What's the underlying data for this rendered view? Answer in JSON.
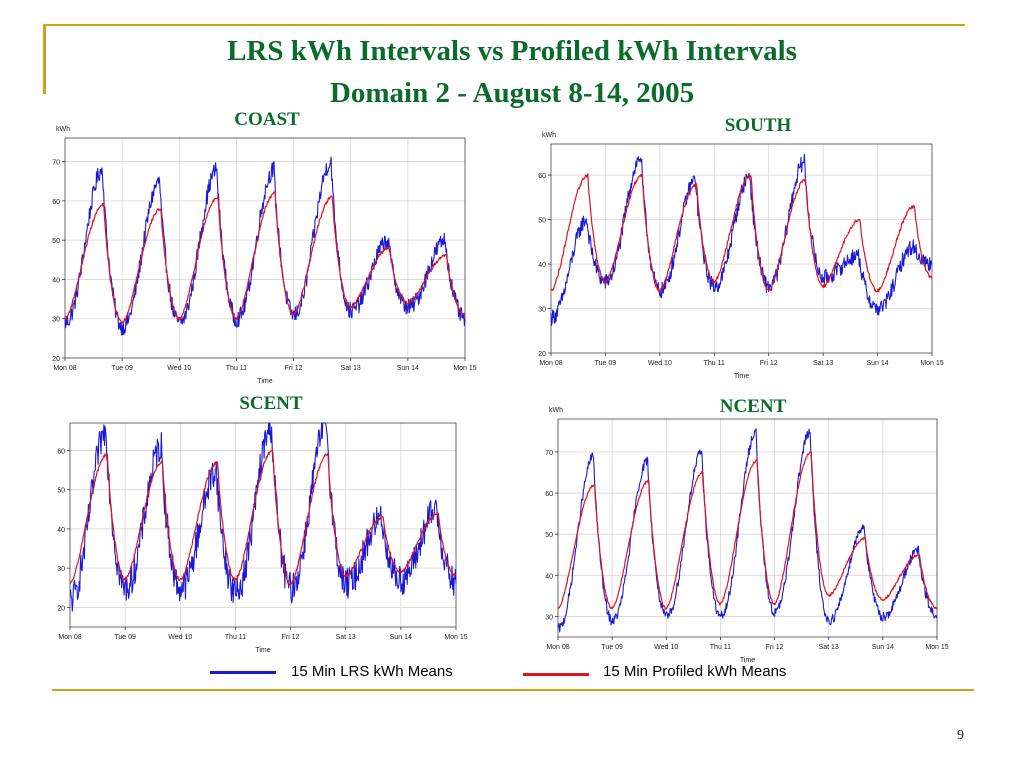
{
  "slide": {
    "title_line1": "LRS kWh Intervals vs Profiled kWh Intervals",
    "title_line2": "Domain 2 - August 8-14, 2005",
    "page_number": "9"
  },
  "legend": {
    "lrs": {
      "label": "15 Min LRS kWh Means",
      "color": "#1a1ad6"
    },
    "profiled": {
      "label": "15 Min Profiled kWh Means",
      "color": "#e0141e"
    }
  },
  "chart_data": [
    {
      "type": "line",
      "title": "COAST",
      "ylabel": "kWh",
      "xlabel": "Time",
      "x_ticks": [
        "Mon 08",
        "Tue 09",
        "Wed 10",
        "Thu 11",
        "Fri 12",
        "Sat 13",
        "Sun 14",
        "Mon 15"
      ],
      "y_ticks": [
        20,
        30,
        40,
        50,
        60,
        70
      ],
      "ylim": [
        20,
        76
      ],
      "grid": true,
      "series": [
        {
          "name": "15 Min LRS kWh Means",
          "color": "#1a1ad6",
          "daily_min": [
            29,
            28,
            29,
            30,
            31,
            32,
            33,
            30
          ],
          "daily_max": [
            68,
            65,
            68,
            68,
            70,
            50,
            50
          ],
          "noise": 2.2
        },
        {
          "name": "15 Min Profiled kWh Means",
          "color": "#e0141e",
          "daily_min": [
            30,
            29,
            30,
            30,
            31,
            33,
            34,
            31
          ],
          "daily_max": [
            59,
            58,
            61,
            62,
            61,
            48,
            46
          ],
          "noise": 0.4
        }
      ]
    },
    {
      "type": "line",
      "title": "SOUTH",
      "ylabel": "kWh",
      "xlabel": "Time",
      "x_ticks": [
        "Mon 08",
        "Tue 09",
        "Wed 10",
        "Thu 11",
        "Fri 12",
        "Sat 13",
        "Sun 14",
        "Mon 15"
      ],
      "y_ticks": [
        20,
        30,
        40,
        50,
        60
      ],
      "ylim": [
        20,
        67
      ],
      "grid": true,
      "series": [
        {
          "name": "15 Min LRS kWh Means",
          "color": "#1a1ad6",
          "daily_min": [
            28,
            36,
            34,
            35,
            35,
            37,
            30,
            40
          ],
          "daily_max": [
            50,
            64,
            59,
            60,
            63,
            42,
            44
          ],
          "noise": 1.8
        },
        {
          "name": "15 Min Profiled kWh Means",
          "color": "#e0141e",
          "daily_min": [
            34,
            36,
            34,
            36,
            34,
            35,
            34,
            37
          ],
          "daily_max": [
            60,
            60,
            58,
            60,
            59,
            50,
            53
          ],
          "noise": 0.4
        }
      ]
    },
    {
      "type": "line",
      "title": "SCENT",
      "ylabel": "",
      "xlabel": "Time",
      "x_ticks": [
        "Mon 08",
        "Tue 09",
        "Wed 10",
        "Thu 11",
        "Fri 12",
        "Sat 13",
        "Sun 14",
        "Mon 15"
      ],
      "y_ticks": [
        20,
        30,
        40,
        50,
        60
      ],
      "ylim": [
        15,
        67
      ],
      "grid": true,
      "series": [
        {
          "name": "15 Min LRS kWh Means",
          "color": "#1a1ad6",
          "daily_min": [
            22,
            25,
            25,
            24,
            25,
            26,
            27,
            26
          ],
          "daily_max": [
            65,
            61,
            55,
            66,
            67,
            43,
            45
          ],
          "noise": 4.0
        },
        {
          "name": "15 Min Profiled kWh Means",
          "color": "#e0141e",
          "daily_min": [
            26,
            27,
            27,
            27,
            26,
            28,
            29,
            28
          ],
          "daily_max": [
            59,
            57,
            57,
            60,
            59,
            43,
            44
          ],
          "noise": 0.4
        }
      ]
    },
    {
      "type": "line",
      "title": "NCENT",
      "ylabel": "kWh",
      "xlabel": "Time",
      "x_ticks": [
        "Mon 08",
        "Tue 09",
        "Wed 10",
        "Thu 11",
        "Fri 12",
        "Sat 13",
        "Sun 14",
        "Mon 15"
      ],
      "y_ticks": [
        30,
        40,
        50,
        60,
        70
      ],
      "ylim": [
        25,
        78
      ],
      "grid": true,
      "series": [
        {
          "name": "15 Min LRS kWh Means",
          "color": "#1a1ad6",
          "daily_min": [
            27,
            29,
            30,
            30,
            31,
            29,
            30,
            30
          ],
          "daily_max": [
            69,
            68,
            70,
            75,
            75,
            52,
            46
          ],
          "noise": 1.2
        },
        {
          "name": "15 Min Profiled kWh Means",
          "color": "#e0141e",
          "daily_min": [
            32,
            32,
            32,
            33,
            33,
            35,
            34,
            32
          ],
          "daily_max": [
            62,
            63,
            65,
            68,
            70,
            49,
            45
          ],
          "noise": 0.3
        }
      ]
    }
  ]
}
